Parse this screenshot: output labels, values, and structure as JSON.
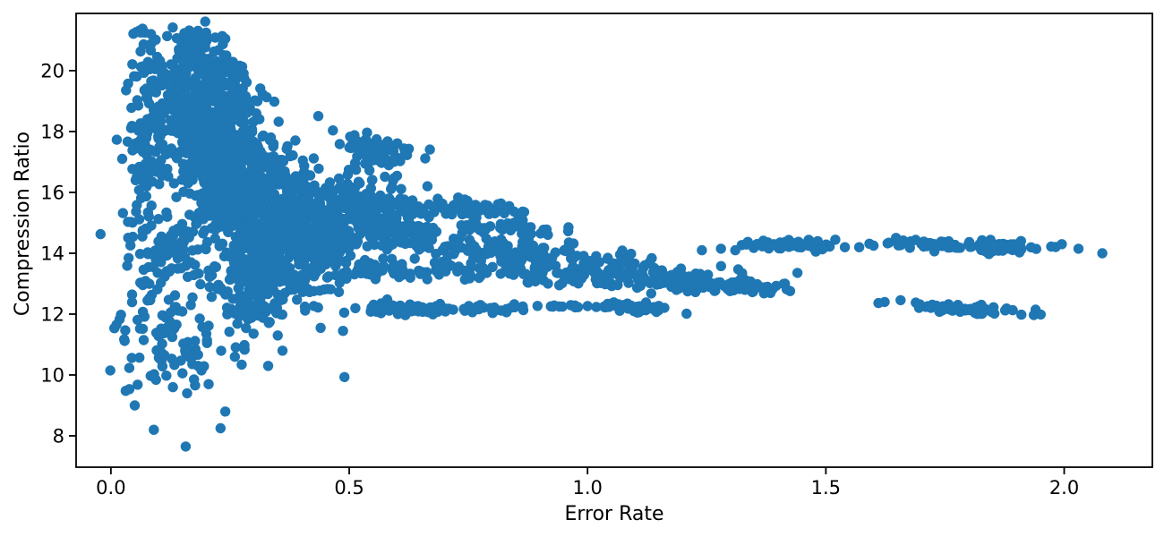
{
  "chart_data": {
    "type": "scatter",
    "title": "",
    "xlabel": "Error Rate",
    "ylabel": "Compression Ratio",
    "xlim": [
      -0.073,
      2.185
    ],
    "ylim": [
      6.97,
      21.88
    ],
    "xticks": [
      0.0,
      0.5,
      1.0,
      1.5,
      2.0
    ],
    "xtick_labels": [
      "0.0",
      "0.5",
      "1.0",
      "1.5",
      "2.0"
    ],
    "yticks": [
      8,
      10,
      12,
      14,
      16,
      18,
      20
    ],
    "ytick_labels": [
      "8",
      "10",
      "12",
      "14",
      "16",
      "18",
      "20"
    ],
    "grid": false,
    "legend": null,
    "marker_color": "#1f77b4",
    "marker_radius_px": 5.7,
    "axis_color": "#000000",
    "background": "#ffffff",
    "seed": 7,
    "clusters": [
      {
        "cx": 0.21,
        "cy": 18.0,
        "sx": 0.055,
        "sy": 1.1,
        "n": 480,
        "slope": -6
      },
      {
        "cx": 0.3,
        "cy": 15.8,
        "sx": 0.075,
        "sy": 1.0,
        "n": 520,
        "slope": -5
      },
      {
        "cx": 0.4,
        "cy": 14.7,
        "sx": 0.06,
        "sy": 0.65,
        "n": 260,
        "slope": -4
      },
      {
        "cx": 0.33,
        "cy": 13.35,
        "sx": 0.07,
        "sy": 0.5,
        "n": 190,
        "slope": -2
      },
      {
        "cx": 0.21,
        "cy": 20.0,
        "sx": 0.045,
        "sy": 0.55,
        "n": 130,
        "slope": -8
      },
      {
        "cx": 0.185,
        "cy": 20.75,
        "sx": 0.02,
        "sy": 0.3,
        "n": 40,
        "slope": 0
      },
      {
        "cx": 0.07,
        "cy": 17.8,
        "sx": 0.022,
        "sy": 2.0,
        "n": 110,
        "slope": 0
      },
      {
        "cx": 0.13,
        "cy": 14.4,
        "sx": 0.05,
        "sy": 0.55,
        "n": 70,
        "slope": 0
      },
      {
        "cx": 0.1,
        "cy": 11.8,
        "sx": 0.05,
        "sy": 1.2,
        "n": 80,
        "slope": 0
      },
      {
        "cx": 0.2,
        "cy": 10.8,
        "sx": 0.06,
        "sy": 0.7,
        "n": 35,
        "slope": 0
      },
      {
        "cx": 0.305,
        "cy": 12.1,
        "sx": 0.03,
        "sy": 0.2,
        "n": 50,
        "slope": 0
      },
      {
        "cx": 0.565,
        "cy": 17.25,
        "sx": 0.042,
        "sy": 0.3,
        "n": 70,
        "slope": -2
      },
      {
        "cx": 0.54,
        "cy": 15.55,
        "sx": 0.06,
        "sy": 0.5,
        "n": 160,
        "slope": -3
      },
      {
        "cx": 0.585,
        "cy": 14.7,
        "sx": 0.06,
        "sy": 0.3,
        "n": 80,
        "slope": -2
      },
      {
        "cx": 0.75,
        "cy": 15.5,
        "sx": 0.065,
        "sy": 0.16,
        "n": 75,
        "slope": -1
      },
      {
        "cx": 0.82,
        "cy": 14.85,
        "sx": 0.055,
        "sy": 0.12,
        "n": 45,
        "slope": -1
      },
      {
        "cx": 0.88,
        "cy": 14.0,
        "sx": 0.13,
        "sy": 0.22,
        "n": 130,
        "slope": -1.5
      },
      {
        "cx": 1.0,
        "cy": 13.3,
        "sx": 0.2,
        "sy": 0.17,
        "n": 170,
        "slope": -0.6
      },
      {
        "cx": 0.56,
        "cy": 13.45,
        "sx": 0.05,
        "sy": 0.12,
        "n": 35,
        "slope": 0
      },
      {
        "cx": 1.25,
        "cy": 12.9,
        "sx": 0.1,
        "sy": 0.1,
        "n": 80,
        "slope": -0.5
      },
      {
        "cx": 0.62,
        "cy": 12.18,
        "sx": 0.055,
        "sy": 0.09,
        "n": 55,
        "slope": 0
      },
      {
        "cx": 0.79,
        "cy": 12.15,
        "sx": 0.045,
        "sy": 0.08,
        "n": 28,
        "slope": 0
      },
      {
        "cx": 0.94,
        "cy": 12.27,
        "sx": 0.045,
        "sy": 0.05,
        "n": 8,
        "slope": 0
      },
      {
        "cx": 1.1,
        "cy": 12.2,
        "sx": 0.055,
        "sy": 0.09,
        "n": 45,
        "slope": -0.8
      },
      {
        "cx": 1.35,
        "cy": 14.25,
        "sx": 0.02,
        "sy": 0.08,
        "n": 12,
        "slope": 0
      },
      {
        "cx": 1.45,
        "cy": 14.25,
        "sx": 0.045,
        "sy": 0.1,
        "n": 45,
        "slope": 0
      },
      {
        "cx": 1.7,
        "cy": 14.3,
        "sx": 0.05,
        "sy": 0.08,
        "n": 40,
        "slope": -0.5
      },
      {
        "cx": 1.85,
        "cy": 14.22,
        "sx": 0.06,
        "sy": 0.09,
        "n": 60,
        "slope": -0.5
      },
      {
        "cx": 1.78,
        "cy": 12.18,
        "sx": 0.07,
        "sy": 0.07,
        "n": 65,
        "slope": -1.0
      }
    ],
    "points": [
      [
        0.05,
        9.0
      ],
      [
        0.09,
        8.2
      ],
      [
        0.157,
        7.65
      ],
      [
        0.23,
        8.25
      ],
      [
        0.24,
        8.8
      ],
      [
        0.49,
        9.93
      ],
      [
        0.35,
        11.3
      ],
      [
        0.36,
        10.8
      ],
      [
        0.33,
        10.3
      ],
      [
        0.44,
        11.55
      ],
      [
        0.487,
        11.45
      ],
      [
        0.96,
        14.85
      ],
      [
        1.07,
        13.75
      ],
      [
        1.12,
        13.6
      ],
      [
        1.24,
        14.1
      ],
      [
        1.28,
        14.15
      ],
      [
        1.31,
        14.1
      ],
      [
        1.54,
        14.2
      ],
      [
        1.57,
        14.2
      ],
      [
        1.6,
        14.25
      ],
      [
        1.995,
        14.3
      ],
      [
        2.03,
        14.15
      ],
      [
        2.08,
        14.0
      ],
      [
        0.13,
        9.6
      ],
      [
        0.16,
        9.4
      ],
      [
        0.19,
        10.15
      ],
      [
        0.205,
        9.7
      ],
      [
        0.26,
        10.6
      ],
      [
        0.28,
        10.9
      ]
    ]
  }
}
